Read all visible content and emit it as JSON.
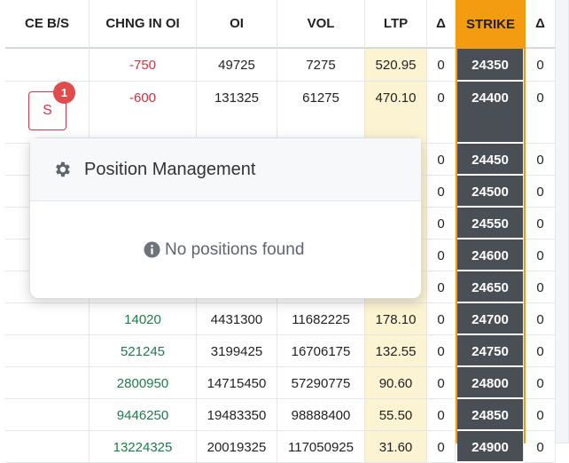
{
  "table": {
    "headers": [
      "CE B/S",
      "CHNG IN OI",
      "OI",
      "VOL",
      "LTP",
      "Δ",
      "STRIKE",
      "Δ"
    ],
    "rows": [
      {
        "chng_oi": "-750",
        "oi": "49725",
        "vol": "7275",
        "ltp": "520.95",
        "delta": "0",
        "strike": "24350",
        "delta2": "0"
      },
      {
        "action": "S",
        "badge": "1",
        "chng_oi": "-600",
        "oi": "131325",
        "vol": "61275",
        "ltp": "470.10",
        "delta": "0",
        "strike": "24400",
        "delta2": "0"
      },
      {
        "delta": "0",
        "strike": "24450",
        "delta2": "0"
      },
      {
        "delta": "0",
        "strike": "24500",
        "delta2": "0"
      },
      {
        "delta": "0",
        "strike": "24550",
        "delta2": "0"
      },
      {
        "delta": "0",
        "strike": "24600",
        "delta2": "0"
      },
      {
        "delta": "0",
        "strike": "24650",
        "delta2": "0"
      },
      {
        "chng_oi": "14020",
        "oi": "4431300",
        "vol": "11682225",
        "ltp": "178.10",
        "delta": "0",
        "strike": "24700",
        "delta2": "0"
      },
      {
        "chng_oi": "521245",
        "oi": "3199425",
        "vol": "16706175",
        "ltp": "132.55",
        "delta": "0",
        "strike": "24750",
        "delta2": "0"
      },
      {
        "chng_oi": "2800950",
        "oi": "14715450",
        "vol": "57290775",
        "ltp": "90.60",
        "delta": "0",
        "strike": "24800",
        "delta2": "0"
      },
      {
        "chng_oi": "9446250",
        "oi": "19483350",
        "vol": "98888400",
        "ltp": "55.50",
        "delta": "0",
        "strike": "24850",
        "delta2": "0"
      },
      {
        "chng_oi": "13224325",
        "oi": "20019325",
        "vol": "117050925",
        "ltp": "31.60",
        "delta": "0",
        "strike": "24900",
        "delta2": "0"
      }
    ]
  },
  "popup": {
    "title": "Position Management",
    "message": "No positions found"
  }
}
